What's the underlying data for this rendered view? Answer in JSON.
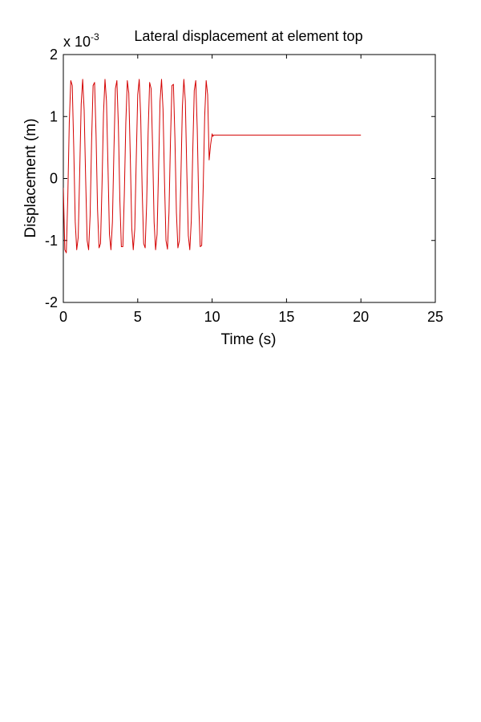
{
  "chart_data": {
    "type": "line",
    "title": "Lateral displacement at element top",
    "xlabel": "Time (s)",
    "ylabel": "Displacement (m)",
    "exponent_label": {
      "base": "x 10",
      "power": "-3"
    },
    "xlim": [
      0,
      25
    ],
    "ylim": [
      -2,
      2
    ],
    "y_scale_factor": 0.001,
    "xticks": [
      0,
      5,
      10,
      15,
      20,
      25
    ],
    "yticks": [
      -2,
      -1,
      0,
      1,
      2
    ],
    "xtick_labels": [
      "0",
      "5",
      "10",
      "15",
      "20",
      "25"
    ],
    "ytick_labels": [
      "-2",
      "-1",
      "0",
      "1",
      "2"
    ],
    "grid": false,
    "series": [
      {
        "color": "#d40000",
        "x": [
          0,
          0.1,
          0.2,
          0.3,
          0.4,
          0.5,
          0.6,
          0.7,
          0.8,
          0.9,
          1.0,
          1.1,
          1.2,
          1.3,
          1.4,
          1.5,
          1.6,
          1.7,
          1.8,
          1.9,
          2.0,
          2.1,
          2.2,
          2.3,
          2.4,
          2.5,
          2.6,
          2.7,
          2.8,
          2.9,
          3.0,
          3.1,
          3.2,
          3.3,
          3.4,
          3.5,
          3.6,
          3.7,
          3.8,
          3.9,
          4.0,
          4.1,
          4.2,
          4.3,
          4.4,
          4.5,
          4.6,
          4.7,
          4.8,
          4.9,
          5.0,
          5.1,
          5.2,
          5.3,
          5.4,
          5.5,
          5.6,
          5.7,
          5.8,
          5.9,
          6.0,
          6.1,
          6.2,
          6.3,
          6.4,
          6.5,
          6.6,
          6.7,
          6.8,
          6.9,
          7.0,
          7.1,
          7.2,
          7.3,
          7.4,
          7.5,
          7.6,
          7.7,
          7.8,
          7.9,
          8.0,
          8.1,
          8.2,
          8.3,
          8.4,
          8.5,
          8.6,
          8.7,
          8.8,
          8.9,
          9.0,
          9.1,
          9.2,
          9.3,
          9.4,
          9.5,
          9.6,
          9.7,
          9.8,
          9.9,
          10.0,
          10.05,
          10.1,
          10.2,
          20.0
        ],
        "y": [
          -0.15,
          -1.15,
          -1.2,
          -0.3,
          0.9,
          1.58,
          1.5,
          0.5,
          -0.7,
          -1.15,
          -0.95,
          0.1,
          1.2,
          1.6,
          1.1,
          0.0,
          -1.0,
          -1.15,
          -0.6,
          0.6,
          1.5,
          1.55,
          0.7,
          -0.5,
          -1.12,
          -1.05,
          -0.1,
          1.05,
          1.6,
          1.25,
          0.2,
          -0.9,
          -1.15,
          -0.7,
          0.45,
          1.45,
          1.58,
          0.85,
          -0.35,
          -1.1,
          -1.1,
          -0.25,
          0.9,
          1.58,
          1.38,
          0.35,
          -0.8,
          -1.15,
          -0.82,
          0.3,
          1.35,
          1.6,
          1.0,
          -0.2,
          -1.05,
          -1.12,
          -0.4,
          0.75,
          1.55,
          1.45,
          0.5,
          -0.7,
          -1.15,
          -0.9,
          0.15,
          1.25,
          1.6,
          1.12,
          -0.05,
          -1.0,
          -1.14,
          -0.55,
          0.6,
          1.5,
          1.52,
          0.65,
          -0.55,
          -1.12,
          -1.0,
          0.0,
          1.15,
          1.6,
          1.25,
          0.1,
          -0.92,
          -1.15,
          -0.68,
          0.45,
          1.42,
          1.58,
          0.8,
          -0.4,
          -1.1,
          -1.08,
          -0.15,
          1.0,
          1.58,
          1.35,
          0.3,
          0.55,
          0.72,
          0.68,
          0.7,
          0.7,
          0.7
        ]
      }
    ]
  }
}
